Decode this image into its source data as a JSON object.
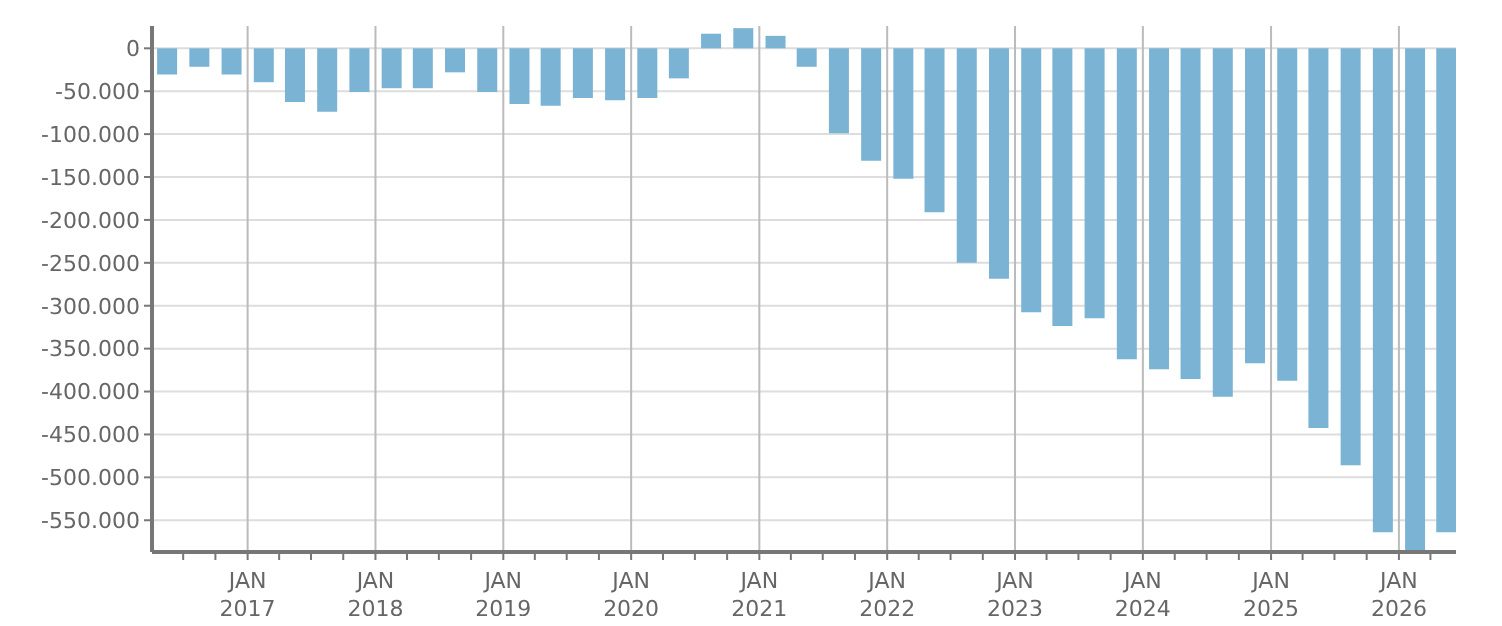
{
  "chart_data": {
    "type": "bar",
    "color": "#7ab3d4",
    "x": [
      "2016-05-15",
      "2016-08-15",
      "2016-11-15",
      "2017-02-15",
      "2017-05-15",
      "2017-08-15",
      "2017-11-15",
      "2018-02-15",
      "2018-05-15",
      "2018-08-15",
      "2018-11-15",
      "2019-02-15",
      "2019-05-15",
      "2019-08-15",
      "2019-11-15",
      "2020-02-15",
      "2020-05-15",
      "2020-08-15",
      "2020-11-15",
      "2021-02-15",
      "2021-05-15",
      "2021-08-15",
      "2021-11-15",
      "2022-02-15",
      "2022-05-15",
      "2022-08-15",
      "2022-11-15",
      "2023-02-15",
      "2023-05-15",
      "2023-08-15",
      "2023-11-15",
      "2024-02-15",
      "2024-05-15",
      "2024-08-15",
      "2024-11-15",
      "2025-02-15",
      "2025-05-15",
      "2025-08-15",
      "2025-11-15",
      "2026-02-15",
      "2026-05-15"
    ],
    "values": [
      -30500,
      -21500,
      -30500,
      -39500,
      -62500,
      -74000,
      -51000,
      -46500,
      -46500,
      -28000,
      -51000,
      -65000,
      -67000,
      -58000,
      -60500,
      -58000,
      -35000,
      17000,
      23500,
      14500,
      -21500,
      -99000,
      -131000,
      -152000,
      -191000,
      -250000,
      -268500,
      -307500,
      -323500,
      -314500,
      -362500,
      -374000,
      -385500,
      -406000,
      -367000,
      -387500,
      -442500,
      -486000,
      -564000,
      -586000,
      -564000
    ],
    "xlim": [
      "2016-04-03",
      "2026-06-13"
    ],
    "xticks": [
      {
        "value": "2016-07-01",
        "label": null
      },
      {
        "value": "2016-10-01",
        "label": null
      },
      {
        "value": "2017-01-01",
        "label": "JAN 2017"
      },
      {
        "value": "2017-04-01",
        "label": null
      },
      {
        "value": "2017-07-01",
        "label": null
      },
      {
        "value": "2017-10-01",
        "label": null
      },
      {
        "value": "2018-01-01",
        "label": "JAN 2018"
      },
      {
        "value": "2018-04-01",
        "label": null
      },
      {
        "value": "2018-07-01",
        "label": null
      },
      {
        "value": "2018-10-01",
        "label": null
      },
      {
        "value": "2019-01-01",
        "label": "JAN 2019"
      },
      {
        "value": "2019-04-01",
        "label": null
      },
      {
        "value": "2019-07-01",
        "label": null
      },
      {
        "value": "2019-10-01",
        "label": null
      },
      {
        "value": "2020-01-01",
        "label": "JAN 2020"
      },
      {
        "value": "2020-04-01",
        "label": null
      },
      {
        "value": "2020-07-01",
        "label": null
      },
      {
        "value": "2020-10-01",
        "label": null
      },
      {
        "value": "2021-01-01",
        "label": "JAN 2021"
      },
      {
        "value": "2021-04-01",
        "label": null
      },
      {
        "value": "2021-07-01",
        "label": null
      },
      {
        "value": "2021-10-01",
        "label": null
      },
      {
        "value": "2022-01-01",
        "label": "JAN 2022"
      },
      {
        "value": "2022-04-01",
        "label": null
      },
      {
        "value": "2022-07-01",
        "label": null
      },
      {
        "value": "2022-10-01",
        "label": null
      },
      {
        "value": "2023-01-01",
        "label": "JAN 2023"
      },
      {
        "value": "2023-04-01",
        "label": null
      },
      {
        "value": "2023-07-01",
        "label": null
      },
      {
        "value": "2023-10-01",
        "label": null
      },
      {
        "value": "2024-01-01",
        "label": "JAN 2024"
      },
      {
        "value": "2024-04-01",
        "label": null
      },
      {
        "value": "2024-07-01",
        "label": null
      },
      {
        "value": "2024-10-01",
        "label": null
      },
      {
        "value": "2025-01-01",
        "label": "JAN 2025"
      },
      {
        "value": "2025-04-01",
        "label": null
      },
      {
        "value": "2025-07-01",
        "label": null
      },
      {
        "value": "2025-10-01",
        "label": null
      },
      {
        "value": "2026-01-01",
        "label": "JAN 2026"
      },
      {
        "value": "2026-04-01",
        "label": null
      }
    ],
    "ylim": [
      -587000,
      26000
    ],
    "yticks": [
      {
        "value": -550000,
        "label": "-550.000"
      },
      {
        "value": -500000,
        "label": "-500.000"
      },
      {
        "value": -450000,
        "label": "-450.000"
      },
      {
        "value": -400000,
        "label": "-400.000"
      },
      {
        "value": -350000,
        "label": "-350.000"
      },
      {
        "value": -300000,
        "label": "-300.000"
      },
      {
        "value": -250000,
        "label": "-250.000"
      },
      {
        "value": -200000,
        "label": "-200.000"
      },
      {
        "value": -150000,
        "label": "-150.000"
      },
      {
        "value": -100000,
        "label": "-100.000"
      },
      {
        "value": -50000,
        "label": "-50.000"
      },
      0
    ],
    "grid": true
  }
}
